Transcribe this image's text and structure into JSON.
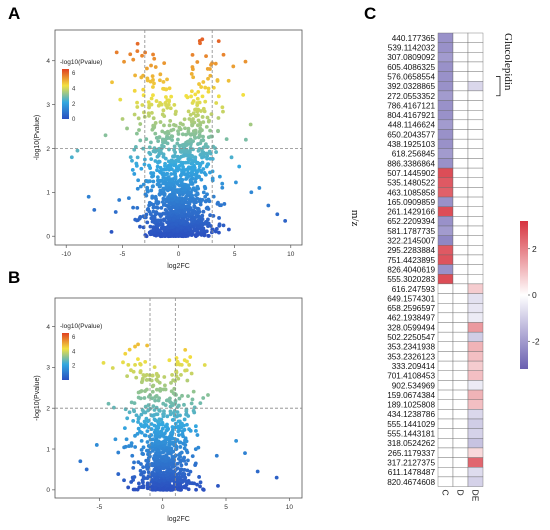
{
  "panels": {
    "a": {
      "letter": "A"
    },
    "b": {
      "letter": "B"
    },
    "c": {
      "letter": "C"
    }
  },
  "colors": {
    "volcano_low": "#2b50c0",
    "volcano_mid": "#33a8e0",
    "volcano_high_mid": "#f2e040",
    "volcano_high": "#e04020",
    "heat_low": "#6a5fb0",
    "heat_mid": "#ffffff",
    "heat_high": "#d7333f"
  },
  "chart_data": [
    {
      "type": "scatter",
      "panel": "A",
      "xlabel": "log2FC",
      "ylabel": "-log10(Pvalue)",
      "xticks": [
        -10,
        -5,
        0,
        5,
        10
      ],
      "yticks": [
        0,
        1,
        2,
        3,
        4
      ],
      "xlim": [
        -11,
        11
      ],
      "ylim": [
        -0.2,
        4.7
      ],
      "threshold_x": [
        -3,
        3
      ],
      "threshold_y": 2,
      "colorbar_title": "-log10(Pvalue)",
      "colorbar_ticks": [
        0,
        2,
        4,
        6
      ],
      "colorbar_range": [
        0,
        6.5
      ],
      "n_points": 1400,
      "x_spread": 1.7,
      "y_max": 4.5,
      "outliers": [
        {
          "x": -9.5,
          "y": 1.8
        },
        {
          "x": -9.0,
          "y": 1.95
        },
        {
          "x": -8.0,
          "y": 0.9
        },
        {
          "x": -7.5,
          "y": 0.6
        },
        {
          "x": 8.0,
          "y": 0.7
        },
        {
          "x": 9.5,
          "y": 0.35
        },
        {
          "x": 7.2,
          "y": 1.1
        },
        {
          "x": -6.5,
          "y": 2.3
        },
        {
          "x": 6.0,
          "y": 2.2
        },
        {
          "x": 8.8,
          "y": 0.5
        }
      ]
    },
    {
      "type": "scatter",
      "panel": "B",
      "xlabel": "log2FC",
      "ylabel": "-log10(Pvalue)",
      "xticks": [
        -5,
        0,
        5,
        10
      ],
      "yticks": [
        0,
        1,
        2,
        3,
        4
      ],
      "xlim": [
        -8.5,
        11
      ],
      "ylim": [
        -0.2,
        4.7
      ],
      "threshold_x": [
        -1,
        1
      ],
      "threshold_y": 2,
      "colorbar_title": "-log10(Pvalue)",
      "colorbar_ticks": [
        2,
        4,
        6
      ],
      "colorbar_range": [
        0,
        6.5
      ],
      "n_points": 900,
      "x_spread": 1.2,
      "y_max": 3.6,
      "outliers": [
        {
          "x": -6.5,
          "y": 0.7
        },
        {
          "x": -6.0,
          "y": 0.5
        },
        {
          "x": 6.5,
          "y": 0.9
        },
        {
          "x": 9.0,
          "y": 0.3
        },
        {
          "x": 5.8,
          "y": 1.2
        },
        {
          "x": -5.2,
          "y": 1.1
        },
        {
          "x": 7.5,
          "y": 0.45
        }
      ]
    },
    {
      "type": "heatmap",
      "panel": "C",
      "ylabel": "m/z",
      "columns": [
        "C",
        "D",
        "DE"
      ],
      "annotation": "Glucolepidin",
      "colorbar_ticks": [
        2,
        0,
        -2
      ],
      "colorbar_range": [
        -3.2,
        3.2
      ],
      "rows": [
        {
          "label": "440.177365",
          "values": [
            -2.2,
            0,
            0
          ]
        },
        {
          "label": "539.1142032",
          "values": [
            -2.2,
            0,
            0
          ]
        },
        {
          "label": "307.0809092",
          "values": [
            -2.0,
            0,
            0
          ]
        },
        {
          "label": "605.4086325",
          "values": [
            -2.2,
            0,
            0
          ]
        },
        {
          "label": "576.0658554",
          "values": [
            -2.2,
            0,
            0
          ]
        },
        {
          "label": "392.0328865",
          "values": [
            -2.2,
            0,
            -0.8
          ]
        },
        {
          "label": "272.0553352",
          "values": [
            -2.0,
            0,
            0
          ]
        },
        {
          "label": "786.4167121",
          "values": [
            -2.2,
            0,
            0
          ]
        },
        {
          "label": "804.4167921",
          "values": [
            -2.2,
            0,
            0
          ]
        },
        {
          "label": "448.1146624",
          "values": [
            -2.0,
            0,
            0
          ]
        },
        {
          "label": "650.2043577",
          "values": [
            -2.2,
            0,
            0
          ]
        },
        {
          "label": "438.1925103",
          "values": [
            -2.2,
            0,
            0
          ]
        },
        {
          "label": "618.256845",
          "values": [
            -2.0,
            0,
            0
          ]
        },
        {
          "label": "886.3386864",
          "values": [
            -2.2,
            0,
            0
          ]
        },
        {
          "label": "507.1445902",
          "values": [
            2.8,
            0,
            0
          ]
        },
        {
          "label": "535.1480522",
          "values": [
            2.6,
            0,
            0
          ]
        },
        {
          "label": "463.1085858",
          "values": [
            2.5,
            0,
            0
          ]
        },
        {
          "label": "165.0909859",
          "values": [
            -2.2,
            0,
            0
          ]
        },
        {
          "label": "261.1429166",
          "values": [
            2.8,
            0,
            0
          ]
        },
        {
          "label": "652.2209394",
          "values": [
            -2.2,
            0,
            0
          ]
        },
        {
          "label": "581.1787735",
          "values": [
            -2.0,
            0,
            0
          ]
        },
        {
          "label": "322.2145007",
          "values": [
            -2.4,
            0,
            0
          ]
        },
        {
          "label": "295.2283884",
          "values": [
            2.6,
            0,
            0
          ]
        },
        {
          "label": "751.4423895",
          "values": [
            2.7,
            0,
            0
          ]
        },
        {
          "label": "826.4040619",
          "values": [
            -2.2,
            0,
            0
          ]
        },
        {
          "label": "555.3020283",
          "values": [
            2.8,
            0,
            0
          ]
        },
        {
          "label": "616.247593",
          "values": [
            0,
            0,
            0.8
          ]
        },
        {
          "label": "649.1574301",
          "values": [
            0,
            0,
            -0.6
          ]
        },
        {
          "label": "658.2596597",
          "values": [
            0,
            0,
            -0.5
          ]
        },
        {
          "label": "462.1938497",
          "values": [
            0,
            0,
            -0.4
          ]
        },
        {
          "label": "328.0599494",
          "values": [
            0,
            0,
            1.6
          ]
        },
        {
          "label": "502.2250547",
          "values": [
            0,
            0,
            -1.0
          ]
        },
        {
          "label": "353.2341938",
          "values": [
            0,
            0,
            1.2
          ]
        },
        {
          "label": "353.2326123",
          "values": [
            0,
            0,
            1.0
          ]
        },
        {
          "label": "333.209414",
          "values": [
            0,
            0,
            0.8
          ]
        },
        {
          "label": "701.4108453",
          "values": [
            0,
            0,
            1.0
          ]
        },
        {
          "label": "902.534969",
          "values": [
            0,
            0,
            -0.4
          ]
        },
        {
          "label": "159.0674384",
          "values": [
            0,
            0,
            1.2
          ]
        },
        {
          "label": "189.1025808",
          "values": [
            0,
            0,
            1.0
          ]
        },
        {
          "label": "434.1238786",
          "values": [
            0,
            0,
            -0.8
          ]
        },
        {
          "label": "555.1441029",
          "values": [
            0,
            0,
            -1.0
          ]
        },
        {
          "label": "555.1443181",
          "values": [
            0,
            0,
            -0.9
          ]
        },
        {
          "label": "318.0524262",
          "values": [
            0,
            0,
            -1.2
          ]
        },
        {
          "label": "265.1179337",
          "values": [
            0,
            0,
            0.6
          ]
        },
        {
          "label": "317.2127375",
          "values": [
            0,
            0,
            2.4
          ]
        },
        {
          "label": "611.1478487",
          "values": [
            0,
            0,
            -0.7
          ]
        },
        {
          "label": "820.4674608",
          "values": [
            0,
            0,
            -0.9
          ]
        }
      ]
    }
  ]
}
